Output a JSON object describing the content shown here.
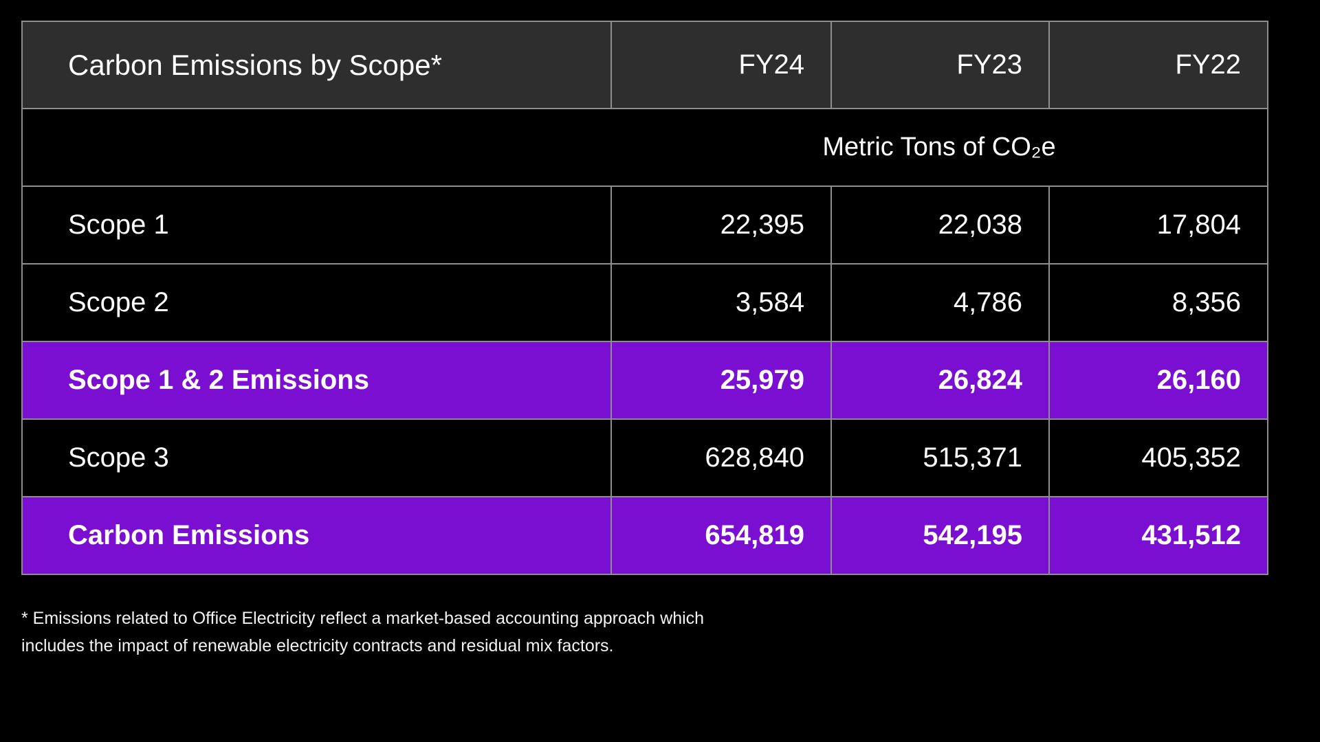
{
  "table": {
    "title": "Carbon Emissions by Scope*",
    "columns": [
      "FY24",
      "FY23",
      "FY22"
    ],
    "unit_label": "Metric Tons of CO₂e",
    "rows": [
      {
        "label": "Scope 1",
        "cells": [
          "22,395",
          "22,038",
          "17,804"
        ],
        "highlight": false
      },
      {
        "label": "Scope 2",
        "cells": [
          "3,584",
          "4,786",
          "8,356"
        ],
        "highlight": false
      },
      {
        "label": "Scope 1 & 2 Emissions",
        "cells": [
          "25,979",
          "26,824",
          "26,160"
        ],
        "highlight": true
      },
      {
        "label": "Scope 3",
        "cells": [
          "628,840",
          "515,371",
          "405,352"
        ],
        "highlight": false
      },
      {
        "label": "Carbon Emissions",
        "cells": [
          "654,819",
          "542,195",
          "431,512"
        ],
        "highlight": true
      }
    ],
    "colors": {
      "highlight_purple": "#7A0FD2",
      "header_gray": "#2E2E2E",
      "border_gray": "#8E8E8E",
      "background": "#000000",
      "text": "#FFFFFF"
    }
  },
  "footnote": {
    "line1": "* Emissions related to Office Electricity reflect a market-based accounting approach which",
    "line2": "includes the impact of renewable electricity contracts and residual mix factors."
  },
  "chart_data": {
    "type": "table",
    "title": "Carbon Emissions by Scope*",
    "unit": "Metric Tons of CO₂e",
    "columns": [
      "FY24",
      "FY23",
      "FY22"
    ],
    "rows": [
      {
        "label": "Scope 1",
        "values": [
          22395,
          22038,
          17804
        ],
        "highlighted": false
      },
      {
        "label": "Scope 2",
        "values": [
          3584,
          4786,
          8356
        ],
        "highlighted": false
      },
      {
        "label": "Scope 1 & 2 Emissions",
        "values": [
          25979,
          26824,
          26160
        ],
        "highlighted": true
      },
      {
        "label": "Scope 3",
        "values": [
          628840,
          515371,
          405352
        ],
        "highlighted": false
      },
      {
        "label": "Carbon Emissions",
        "values": [
          654819,
          542195,
          431512
        ],
        "highlighted": true
      }
    ],
    "footnote": "* Emissions related to Office Electricity reflect a market-based accounting approach which includes the impact of renewable electricity contracts and residual mix factors."
  }
}
